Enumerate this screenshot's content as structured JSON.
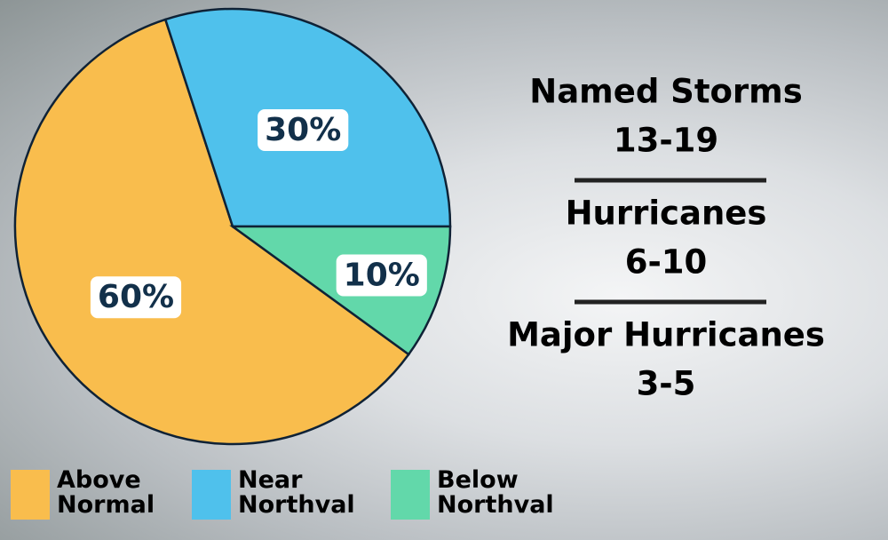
{
  "chart_data": {
    "type": "pie",
    "categories": [
      "Above Normal",
      "Near Northval",
      "Below Northval"
    ],
    "values": [
      60,
      30,
      10
    ],
    "value_labels": [
      "60%",
      "30%",
      "10%"
    ],
    "colors": [
      "#f9bd4d",
      "#4fc1ec",
      "#62d8aa"
    ],
    "annotations": [
      {
        "label": "Named Storms",
        "value": "13-19"
      },
      {
        "label": "Hurricanes",
        "value": "6-10"
      },
      {
        "label": "Major Hurricanes",
        "value": "3-5"
      }
    ]
  }
}
